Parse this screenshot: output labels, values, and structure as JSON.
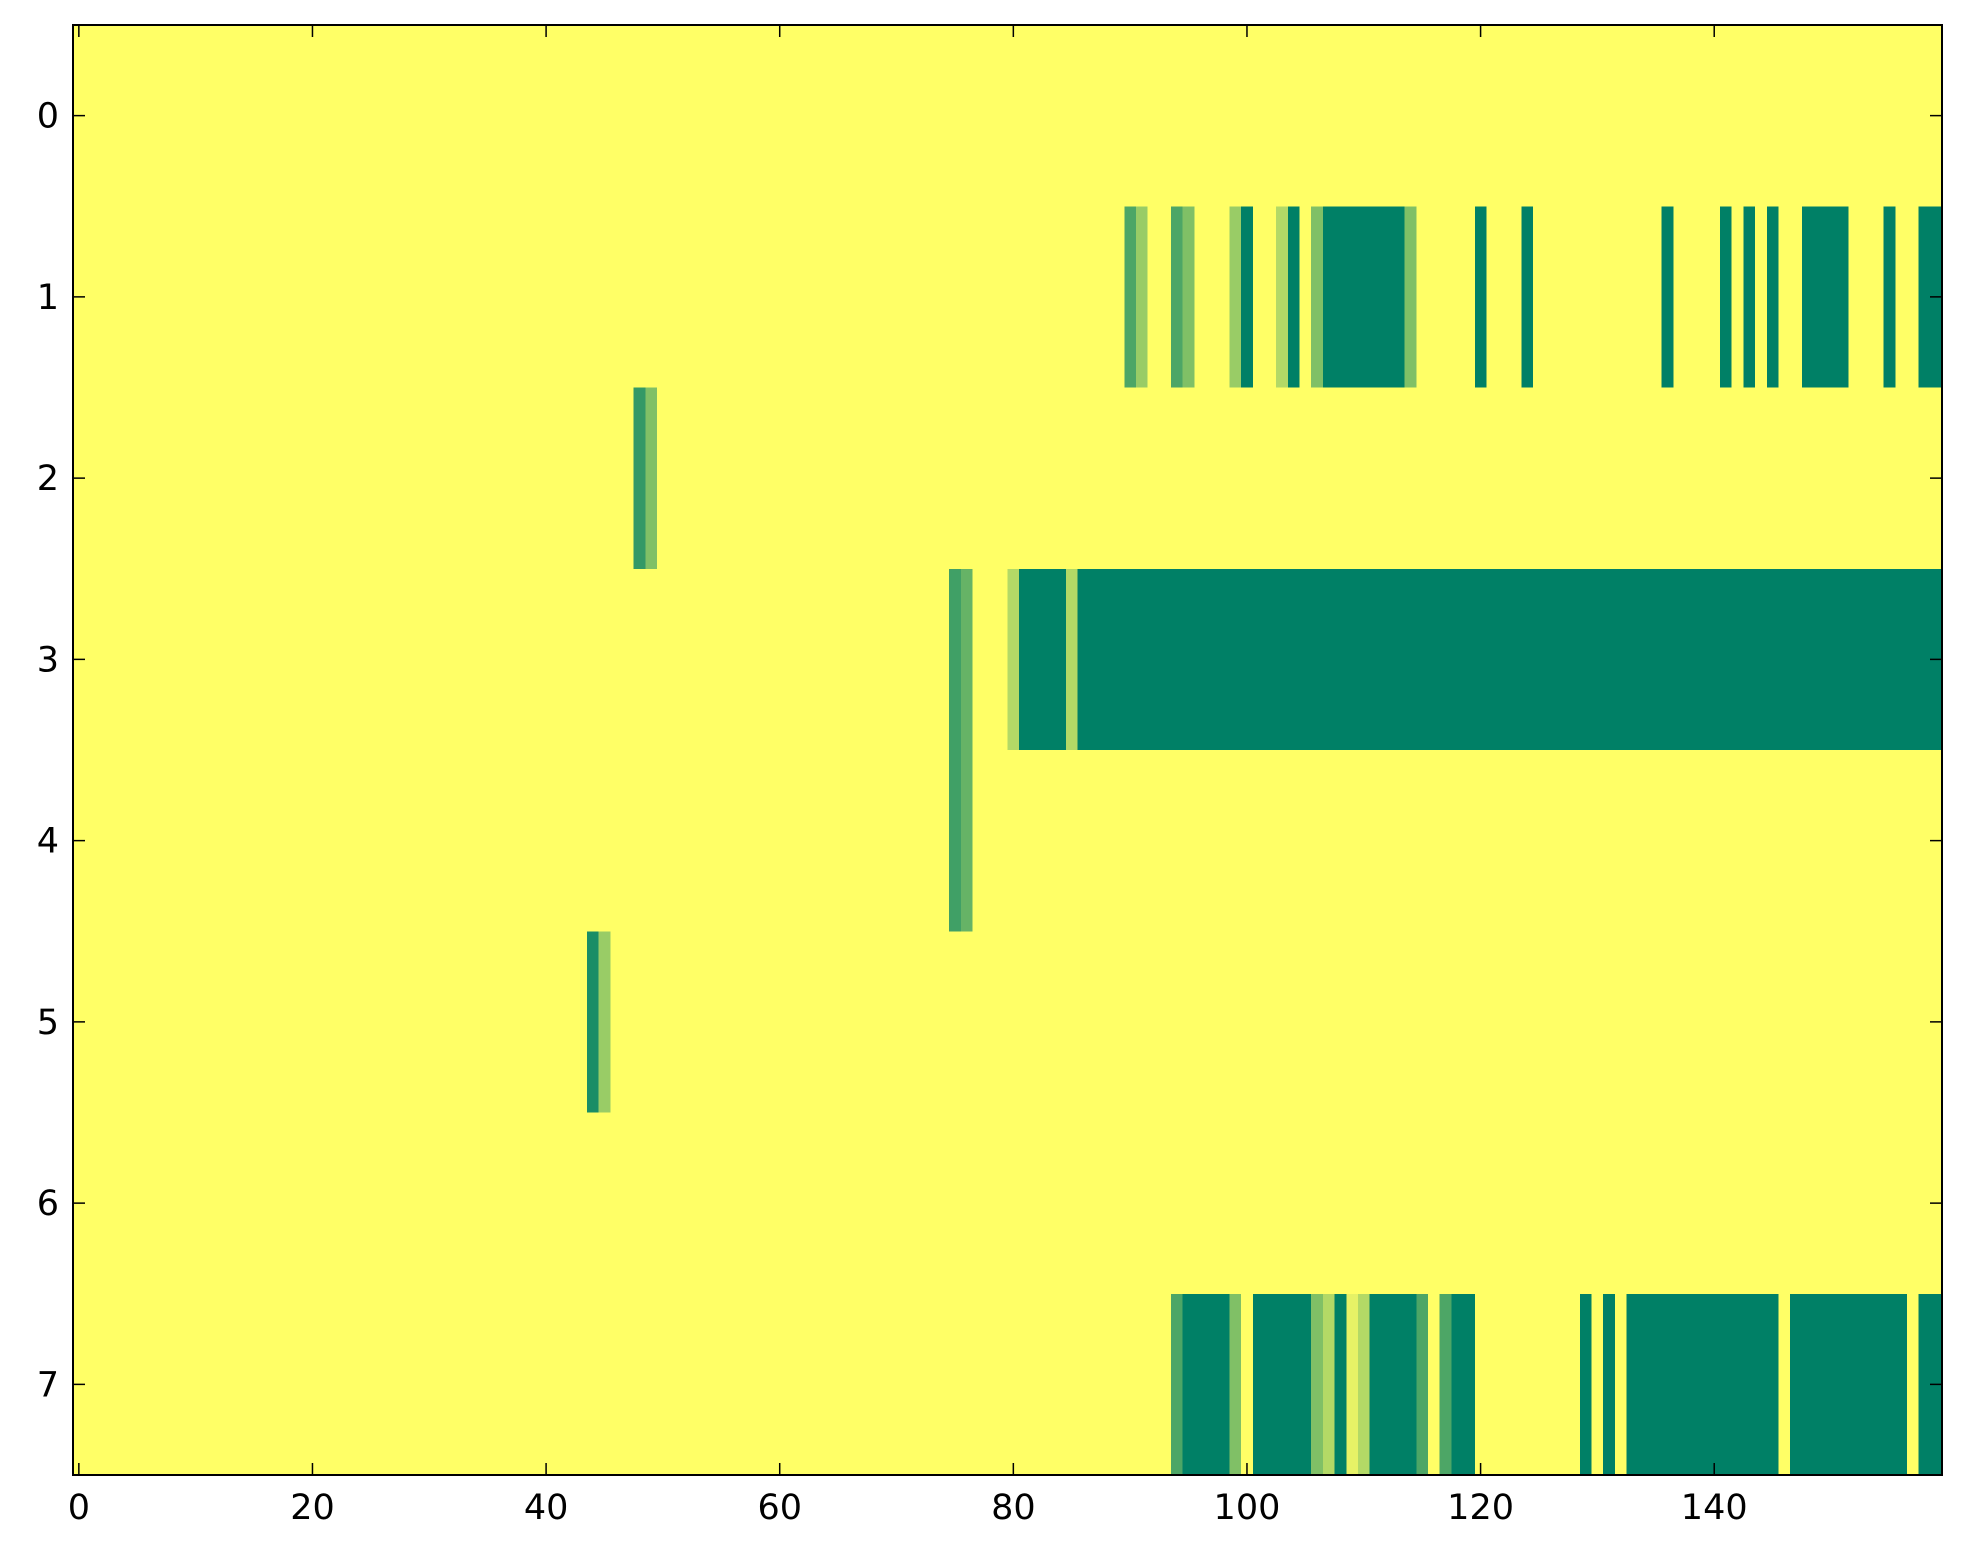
{
  "chart_data": {
    "type": "heatmap",
    "xlim": [
      -0.5,
      159.5
    ],
    "ylim": [
      7.5,
      -0.5
    ],
    "xticks": [
      0,
      20,
      40,
      60,
      80,
      100,
      120,
      140
    ],
    "yticks": [
      0,
      1,
      2,
      3,
      4,
      5,
      6,
      7
    ],
    "color_range": [
      0,
      1
    ],
    "colormap": [
      "#ffff66",
      "#008066"
    ],
    "z": [
      [
        0,
        0,
        0,
        0,
        0,
        0,
        0,
        0,
        0,
        0,
        0,
        0,
        0,
        0,
        0,
        0,
        0,
        0,
        0,
        0,
        0,
        0,
        0,
        0,
        0,
        0,
        0,
        0,
        0,
        0,
        0,
        0,
        0,
        0,
        0,
        0,
        0,
        0,
        0,
        0,
        0,
        0,
        0,
        0,
        0,
        0,
        0,
        0,
        0,
        0,
        0,
        0,
        0,
        0,
        0,
        0,
        0,
        0,
        0,
        0,
        0,
        0,
        0,
        0,
        0,
        0,
        0,
        0,
        0,
        0,
        0,
        0,
        0,
        0,
        0,
        0,
        0,
        0,
        0,
        0,
        0,
        0,
        0,
        0,
        0,
        0,
        0,
        0,
        0,
        0,
        0,
        0,
        0,
        0,
        0,
        0,
        0,
        0,
        0,
        0,
        0,
        0,
        0,
        0,
        0,
        0,
        0,
        0,
        0,
        0,
        0,
        0,
        0,
        0,
        0,
        0,
        0,
        0,
        0,
        0,
        0,
        0,
        0,
        0,
        0,
        0,
        0,
        0,
        0,
        0,
        0,
        0,
        0,
        0,
        0,
        0,
        0,
        0,
        0,
        0,
        0,
        0,
        0,
        0,
        0,
        0,
        0,
        0,
        0,
        0,
        0,
        0,
        0,
        0,
        0,
        0,
        0,
        0,
        0,
        0
      ],
      [
        0,
        0,
        0,
        0,
        0,
        0,
        0,
        0,
        0,
        0,
        0,
        0,
        0,
        0,
        0,
        0,
        0,
        0,
        0,
        0,
        0,
        0,
        0,
        0,
        0,
        0,
        0,
        0,
        0,
        0,
        0,
        0,
        0,
        0,
        0,
        0,
        0,
        0,
        0,
        0,
        0,
        0,
        0,
        0,
        0,
        0,
        0,
        0,
        0,
        0,
        0,
        0,
        0,
        0,
        0,
        0,
        0,
        0,
        0,
        0,
        0,
        0,
        0,
        0,
        0,
        0,
        0,
        0,
        0,
        0,
        0,
        0,
        0,
        0,
        0,
        0,
        0,
        0,
        0,
        0,
        0,
        0,
        0,
        0,
        0,
        0,
        0,
        0,
        0,
        0,
        0.7,
        0.4,
        0,
        0,
        0.7,
        0.5,
        0,
        0,
        0,
        0.4,
        1,
        0,
        0,
        0.3,
        1,
        0,
        0.5,
        1,
        1,
        1,
        1,
        1,
        1,
        1,
        0.5,
        0,
        0,
        0,
        0,
        0,
        1,
        0,
        0,
        0,
        1,
        0,
        0,
        0,
        0,
        0,
        0,
        0,
        0,
        0,
        0,
        0,
        1,
        0,
        0,
        0,
        0,
        1,
        0,
        1,
        0,
        1,
        0,
        0,
        1,
        1,
        1,
        1,
        0,
        0,
        0,
        1,
        0,
        0,
        1,
        1
      ],
      [
        0,
        0,
        0,
        0,
        0,
        0,
        0,
        0,
        0,
        0,
        0,
        0,
        0,
        0,
        0,
        0,
        0,
        0,
        0,
        0,
        0,
        0,
        0,
        0,
        0,
        0,
        0,
        0,
        0,
        0,
        0,
        0,
        0,
        0,
        0,
        0,
        0,
        0,
        0,
        0,
        0,
        0,
        0,
        0,
        0,
        0,
        0,
        0,
        0.8,
        0.5,
        0,
        0,
        0,
        0,
        0,
        0,
        0,
        0,
        0,
        0,
        0,
        0,
        0,
        0,
        0,
        0,
        0,
        0,
        0,
        0,
        0,
        0,
        0,
        0,
        0,
        0,
        0,
        0,
        0,
        0,
        0,
        0,
        0,
        0,
        0,
        0,
        0,
        0,
        0,
        0,
        0,
        0,
        0,
        0,
        0,
        0,
        0,
        0,
        0,
        0,
        0,
        0,
        0,
        0,
        0,
        0,
        0,
        0,
        0,
        0,
        0,
        0,
        0,
        0,
        0,
        0,
        0,
        0,
        0,
        0,
        0,
        0,
        0,
        0,
        0,
        0,
        0,
        0,
        0,
        0,
        0,
        0,
        0,
        0,
        0,
        0,
        0,
        0,
        0,
        0,
        0,
        0,
        0,
        0,
        0,
        0,
        0,
        0,
        0,
        0,
        0,
        0,
        0,
        0,
        0,
        0,
        0,
        0,
        0,
        0
      ],
      [
        0,
        0,
        0,
        0,
        0,
        0,
        0,
        0,
        0,
        0,
        0,
        0,
        0,
        0,
        0,
        0,
        0,
        0,
        0,
        0,
        0,
        0,
        0,
        0,
        0,
        0,
        0,
        0,
        0,
        0,
        0,
        0,
        0,
        0,
        0,
        0,
        0,
        0,
        0,
        0,
        0,
        0,
        0,
        0,
        0,
        0,
        0,
        0,
        0,
        0,
        0,
        0,
        0,
        0,
        0,
        0,
        0,
        0,
        0,
        0,
        0,
        0,
        0,
        0,
        0,
        0,
        0,
        0,
        0,
        0,
        0,
        0,
        0,
        0,
        0,
        0.75,
        0.6,
        0,
        0,
        0,
        0.3,
        1,
        1,
        1,
        1,
        0.3,
        1,
        1,
        1,
        1,
        1,
        1,
        1,
        1,
        1,
        1,
        1,
        1,
        1,
        1,
        1,
        1,
        1,
        1,
        1,
        1,
        1,
        1,
        1,
        1,
        1,
        1,
        1,
        1,
        1,
        1,
        1,
        1,
        1,
        1,
        1,
        1,
        1,
        1,
        1,
        1,
        1,
        1,
        1,
        1,
        1,
        1,
        1,
        1,
        1,
        1,
        1,
        1,
        1,
        1,
        1,
        1,
        1,
        1,
        1,
        1,
        1,
        1,
        1,
        1,
        1,
        1,
        1,
        1,
        1,
        1,
        1,
        1,
        1,
        1
      ],
      [
        0,
        0,
        0,
        0,
        0,
        0,
        0,
        0,
        0,
        0,
        0,
        0,
        0,
        0,
        0,
        0,
        0,
        0,
        0,
        0,
        0,
        0,
        0,
        0,
        0,
        0,
        0,
        0,
        0,
        0,
        0,
        0,
        0,
        0,
        0,
        0,
        0,
        0,
        0,
        0,
        0,
        0,
        0,
        0,
        0,
        0,
        0,
        0,
        0,
        0,
        0,
        0,
        0,
        0,
        0,
        0,
        0,
        0,
        0,
        0,
        0,
        0,
        0,
        0,
        0,
        0,
        0,
        0,
        0,
        0,
        0,
        0,
        0,
        0,
        0,
        0.75,
        0.6,
        0,
        0,
        0,
        0,
        0,
        0,
        0,
        0,
        0,
        0,
        0,
        0,
        0,
        0,
        0,
        0,
        0,
        0,
        0,
        0,
        0,
        0,
        0,
        0,
        0,
        0,
        0,
        0,
        0,
        0,
        0,
        0,
        0,
        0,
        0,
        0,
        0,
        0,
        0,
        0,
        0,
        0,
        0,
        0,
        0,
        0,
        0,
        0,
        0,
        0,
        0,
        0,
        0,
        0,
        0,
        0,
        0,
        0,
        0,
        0,
        0,
        0,
        0,
        0,
        0,
        0,
        0,
        0,
        0,
        0,
        0,
        0,
        0,
        0,
        0,
        0,
        0,
        0,
        0,
        0,
        0,
        0,
        0
      ],
      [
        0,
        0,
        0,
        0,
        0,
        0,
        0,
        0,
        0,
        0,
        0,
        0,
        0,
        0,
        0,
        0,
        0,
        0,
        0,
        0,
        0,
        0,
        0,
        0,
        0,
        0,
        0,
        0,
        0,
        0,
        0,
        0,
        0,
        0,
        0,
        0,
        0,
        0,
        0,
        0,
        0,
        0,
        0,
        0,
        0.9,
        0.4,
        0,
        0,
        0,
        0,
        0,
        0,
        0,
        0,
        0,
        0,
        0,
        0,
        0,
        0,
        0,
        0,
        0,
        0,
        0,
        0,
        0,
        0,
        0,
        0,
        0,
        0,
        0,
        0,
        0,
        0,
        0,
        0,
        0,
        0,
        0,
        0,
        0,
        0,
        0,
        0,
        0,
        0,
        0,
        0,
        0,
        0,
        0,
        0,
        0,
        0,
        0,
        0,
        0,
        0,
        0,
        0,
        0,
        0,
        0,
        0,
        0,
        0,
        0,
        0,
        0,
        0,
        0,
        0,
        0,
        0,
        0,
        0,
        0,
        0,
        0,
        0,
        0,
        0,
        0,
        0,
        0,
        0,
        0,
        0,
        0,
        0,
        0,
        0,
        0,
        0,
        0,
        0,
        0,
        0,
        0,
        0,
        0,
        0,
        0,
        0,
        0,
        0,
        0,
        0,
        0,
        0,
        0,
        0,
        0,
        0,
        0,
        0,
        0,
        0
      ],
      [
        0,
        0,
        0,
        0,
        0,
        0,
        0,
        0,
        0,
        0,
        0,
        0,
        0,
        0,
        0,
        0,
        0,
        0,
        0,
        0,
        0,
        0,
        0,
        0,
        0,
        0,
        0,
        0,
        0,
        0,
        0,
        0,
        0,
        0,
        0,
        0,
        0,
        0,
        0,
        0,
        0,
        0,
        0,
        0,
        0,
        0,
        0,
        0,
        0,
        0,
        0,
        0,
        0,
        0,
        0,
        0,
        0,
        0,
        0,
        0,
        0,
        0,
        0,
        0,
        0,
        0,
        0,
        0,
        0,
        0,
        0,
        0,
        0,
        0,
        0,
        0,
        0,
        0,
        0,
        0,
        0,
        0,
        0,
        0,
        0,
        0,
        0,
        0,
        0,
        0,
        0,
        0,
        0,
        0,
        0,
        0,
        0,
        0,
        0,
        0,
        0,
        0,
        0,
        0,
        0,
        0,
        0,
        0,
        0,
        0,
        0,
        0,
        0,
        0,
        0,
        0,
        0,
        0,
        0,
        0,
        0,
        0,
        0,
        0,
        0,
        0,
        0,
        0,
        0,
        0,
        0,
        0,
        0,
        0,
        0,
        0,
        0,
        0,
        0,
        0,
        0,
        0,
        0,
        0,
        0,
        0,
        0,
        0,
        0,
        0,
        0,
        0,
        0,
        0,
        0,
        0,
        0,
        0,
        0,
        0
      ],
      [
        0,
        0,
        0,
        0,
        0,
        0,
        0,
        0,
        0,
        0,
        0,
        0,
        0,
        0,
        0,
        0,
        0,
        0,
        0,
        0,
        0,
        0,
        0,
        0,
        0,
        0,
        0,
        0,
        0,
        0,
        0,
        0,
        0,
        0,
        0,
        0,
        0,
        0,
        0,
        0,
        0,
        0,
        0,
        0,
        0,
        0,
        0,
        0,
        0,
        0,
        0,
        0,
        0,
        0,
        0,
        0,
        0,
        0,
        0,
        0,
        0,
        0,
        0,
        0,
        0,
        0,
        0,
        0,
        0,
        0,
        0,
        0,
        0,
        0,
        0,
        0,
        0,
        0,
        0,
        0,
        0,
        0,
        0,
        0,
        0,
        0,
        0,
        0,
        0,
        0,
        0,
        0,
        0,
        0,
        0.7,
        1,
        1,
        1,
        1,
        0.5,
        0,
        1,
        1,
        1,
        1,
        1,
        0.5,
        0.3,
        1,
        0.1,
        0.3,
        1,
        1,
        1,
        1,
        0.7,
        0,
        0.7,
        1,
        1,
        0,
        0,
        0,
        0,
        0,
        0,
        0,
        0,
        0,
        1,
        0,
        1,
        0,
        1,
        1,
        1,
        1,
        1,
        1,
        1,
        1,
        1,
        1,
        1,
        1,
        1,
        0,
        1,
        1,
        1,
        1,
        1,
        1,
        1,
        1,
        1,
        1,
        0,
        1,
        1
      ]
    ]
  }
}
